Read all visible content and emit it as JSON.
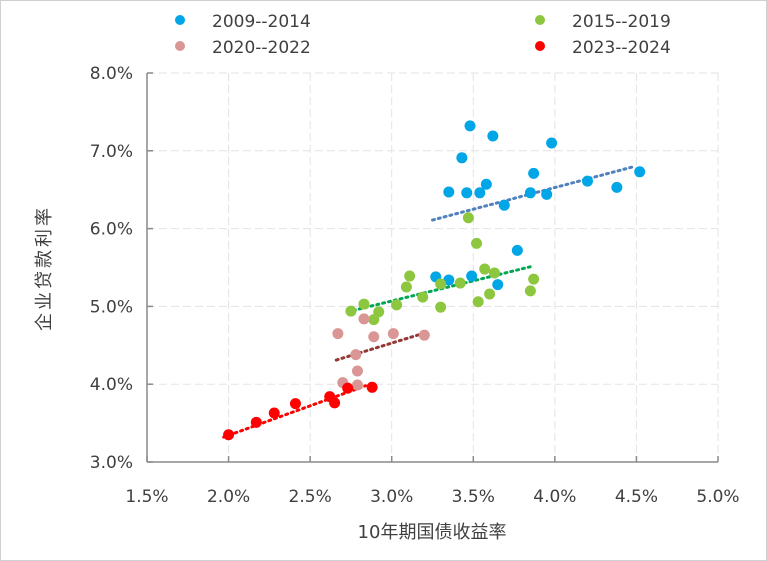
{
  "chart_data": {
    "type": "scatter",
    "title": "",
    "xlabel": "10年期国债收益率",
    "ylabel": "企业贷款利率",
    "xlim": [
      1.5,
      5.0
    ],
    "ylim": [
      3.0,
      8.0
    ],
    "x_ticks": [
      "1.5%",
      "2.0%",
      "2.5%",
      "3.0%",
      "3.5%",
      "4.0%",
      "4.5%",
      "5.0%"
    ],
    "y_ticks": [
      "3.0%",
      "4.0%",
      "5.0%",
      "6.0%",
      "7.0%",
      "8.0%"
    ],
    "x_tick_values": [
      1.5,
      2.0,
      2.5,
      3.0,
      3.5,
      4.0,
      4.5,
      5.0
    ],
    "y_tick_values": [
      3.0,
      4.0,
      5.0,
      6.0,
      7.0,
      8.0
    ],
    "grid": true,
    "legend_position": "top",
    "series": [
      {
        "name": "2009--2014",
        "color": "#00A6E6",
        "trend_color": "#4F81BD",
        "trend": [
          [
            3.25,
            6.11
          ],
          [
            4.49,
            6.8
          ]
        ],
        "points": [
          [
            3.48,
            7.32
          ],
          [
            3.62,
            7.19
          ],
          [
            3.43,
            6.91
          ],
          [
            3.98,
            7.1
          ],
          [
            3.87,
            6.71
          ],
          [
            3.35,
            6.47
          ],
          [
            3.46,
            6.46
          ],
          [
            3.54,
            6.46
          ],
          [
            3.58,
            6.57
          ],
          [
            3.69,
            6.3
          ],
          [
            3.85,
            6.46
          ],
          [
            3.95,
            6.44
          ],
          [
            4.2,
            6.61
          ],
          [
            4.38,
            6.53
          ],
          [
            4.52,
            6.73
          ],
          [
            3.77,
            5.72
          ],
          [
            3.27,
            5.38
          ],
          [
            3.35,
            5.34
          ],
          [
            3.49,
            5.39
          ],
          [
            3.65,
            5.28
          ]
        ]
      },
      {
        "name": "2015--2019",
        "color": "#8DC63F",
        "trend_color": "#00A651",
        "trend": [
          [
            2.73,
            4.93
          ],
          [
            3.87,
            5.52
          ]
        ],
        "points": [
          [
            3.47,
            6.14
          ],
          [
            3.52,
            5.81
          ],
          [
            3.57,
            5.48
          ],
          [
            3.63,
            5.43
          ],
          [
            3.3,
            5.29
          ],
          [
            3.42,
            5.3
          ],
          [
            3.87,
            5.35
          ],
          [
            3.85,
            5.2
          ],
          [
            3.6,
            5.16
          ],
          [
            3.53,
            5.06
          ],
          [
            3.19,
            5.12
          ],
          [
            3.3,
            4.99
          ],
          [
            3.11,
            5.39
          ],
          [
            3.09,
            5.25
          ],
          [
            3.03,
            5.02
          ],
          [
            2.75,
            4.94
          ],
          [
            2.83,
            5.03
          ],
          [
            2.92,
            4.93
          ],
          [
            2.89,
            4.83
          ]
        ]
      },
      {
        "name": "2020--2022",
        "color": "#D99694",
        "trend_color": "#953735",
        "trend": [
          [
            2.66,
            4.31
          ],
          [
            3.22,
            4.67
          ]
        ],
        "points": [
          [
            2.83,
            4.84
          ],
          [
            2.67,
            4.65
          ],
          [
            2.89,
            4.61
          ],
          [
            3.01,
            4.65
          ],
          [
            3.2,
            4.63
          ],
          [
            2.78,
            4.38
          ],
          [
            2.79,
            4.17
          ],
          [
            2.7,
            4.02
          ],
          [
            2.79,
            3.99
          ]
        ]
      },
      {
        "name": "2023--2024",
        "color": "#FF0000",
        "trend_color": "#FF0000",
        "trend": [
          [
            1.97,
            3.32
          ],
          [
            2.84,
            3.98
          ]
        ],
        "points": [
          [
            2.0,
            3.35
          ],
          [
            2.17,
            3.51
          ],
          [
            2.28,
            3.63
          ],
          [
            2.41,
            3.75
          ],
          [
            2.62,
            3.84
          ],
          [
            2.65,
            3.76
          ],
          [
            2.73,
            3.95
          ],
          [
            2.88,
            3.96
          ]
        ]
      }
    ]
  }
}
